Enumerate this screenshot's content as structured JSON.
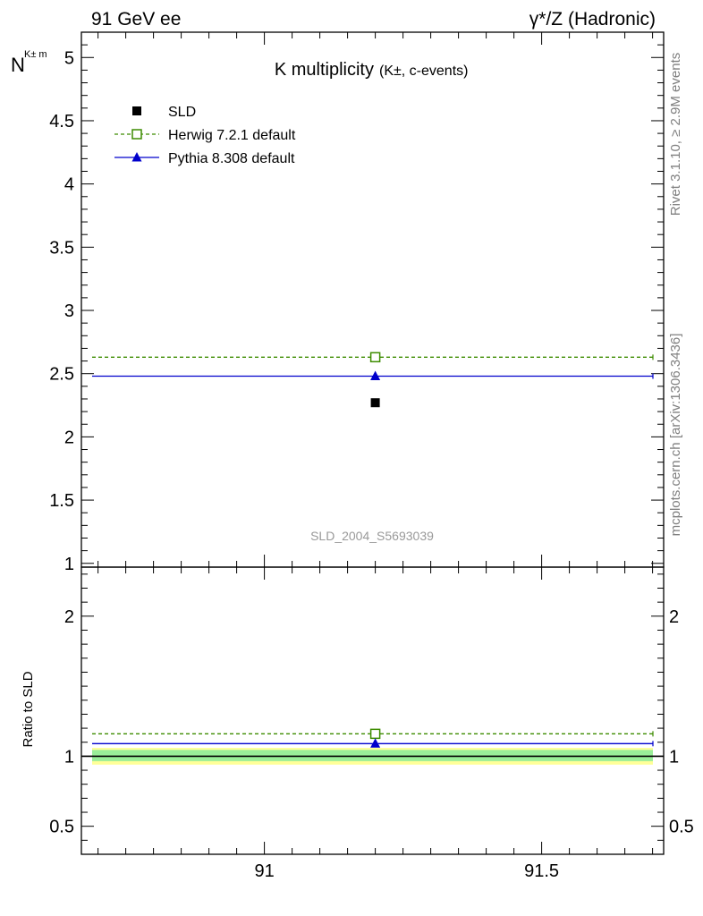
{
  "header": {
    "left": "91 GeV ee",
    "right": "γ*/Z (Hadronic)"
  },
  "side_text": {
    "rivet": "Rivet 3.1.10, ≥ 2.9M events",
    "mcplots": "mcplots.cern.ch [arXiv:1306.3436]"
  },
  "chart_data": [
    {
      "type": "scatter",
      "title_main": "K multiplicity",
      "title_sub": "(K±, c-events)",
      "ylabel_main": "N",
      "ylabel_sub": "K± m",
      "analysis_id": "SLD_2004_S5693039",
      "xlim": [
        90.67,
        91.72
      ],
      "ylim": [
        0.97,
        5.2
      ],
      "yticks": [
        1,
        1.5,
        2,
        2.5,
        3,
        3.5,
        4,
        4.5,
        5
      ],
      "ytick_labels": [
        "1",
        "1.5",
        "2",
        "2.5",
        "3",
        "3.5",
        "4",
        "4.5",
        "5"
      ],
      "legend_position": "top-left",
      "series": [
        {
          "name": "SLD",
          "x": [
            91.2
          ],
          "y": [
            2.27
          ],
          "color": "#000000",
          "marker": "filled-square"
        },
        {
          "name": "Herwig 7.2.1 default",
          "x": [
            91.2
          ],
          "y": [
            2.63
          ],
          "color": "#3d8c00",
          "marker": "open-square",
          "line": "dashed"
        },
        {
          "name": "Pythia 8.308 default",
          "x": [
            91.2
          ],
          "y": [
            2.48
          ],
          "color": "#0000cc",
          "marker": "filled-triangle",
          "line": "solid"
        }
      ]
    },
    {
      "type": "scatter",
      "ylabel": "Ratio to SLD",
      "xlim": [
        90.67,
        91.72
      ],
      "ylim": [
        0.3,
        2.35
      ],
      "xticks": [
        91,
        91.5
      ],
      "xtick_labels": [
        "91",
        "91.5"
      ],
      "yticks": [
        0.5,
        1,
        2
      ],
      "ytick_labels": [
        "0.5",
        "1",
        "2"
      ],
      "uncertainty_bands": [
        {
          "lower": 0.94,
          "upper": 1.06,
          "color": "#ffff99"
        },
        {
          "lower": 0.965,
          "upper": 1.045,
          "color": "#99ee99"
        }
      ],
      "series": [
        {
          "name": "Herwig 7.2.1 default",
          "x": [
            91.2
          ],
          "y": [
            1.16
          ],
          "color": "#3d8c00",
          "marker": "open-square",
          "line": "dashed"
        },
        {
          "name": "Pythia 8.308 default",
          "x": [
            91.2
          ],
          "y": [
            1.09
          ],
          "color": "#0000cc",
          "marker": "filled-triangle",
          "line": "solid"
        }
      ]
    }
  ]
}
